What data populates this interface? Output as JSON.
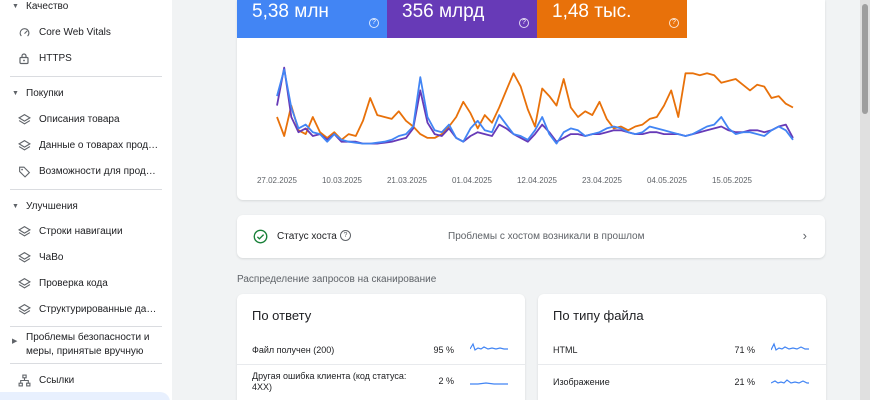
{
  "sidebar": {
    "quality_label": "Качество",
    "quality_items": [
      {
        "label": "Core Web Vitals",
        "icon": "gauge-icon"
      },
      {
        "label": "HTTPS",
        "icon": "lock-icon"
      }
    ],
    "shopping_label": "Покупки",
    "shopping_items": [
      {
        "label": "Описания товара",
        "icon": "layers-icon"
      },
      {
        "label": "Данные о товарах прод…",
        "icon": "layers-icon"
      },
      {
        "label": "Возможности для прод…",
        "icon": "tag-icon"
      }
    ],
    "enhancements_label": "Улучшения",
    "enhancements_items": [
      {
        "label": "Строки навигации",
        "icon": "layers-icon"
      },
      {
        "label": "ЧаВо",
        "icon": "layers-icon"
      },
      {
        "label": "Проверка кода",
        "icon": "layers-icon"
      },
      {
        "label": "Структурированные да…",
        "icon": "layers-icon"
      }
    ],
    "security_label_line1": "Проблемы безопасности и",
    "security_label_line2": "меры, принятые вручную",
    "links_label": "Ссылки",
    "colors": {
      "active_bg": "#e8f0fe"
    }
  },
  "metrics": [
    {
      "value": "5,38 млн",
      "color": "#4285f4"
    },
    {
      "value": "356 млрд",
      "color": "#673ab7"
    },
    {
      "value": "1,48 тыс.",
      "color": "#e8710a"
    }
  ],
  "chart_data": {
    "type": "line",
    "x_labels": [
      "27.02.2025",
      "10.03.2025",
      "21.03.2025",
      "01.04.2025",
      "12.04.2025",
      "23.04.2025",
      "04.05.2025",
      "15.05.2025"
    ],
    "x_range": [
      "2025-02-27",
      "2025-05-27"
    ],
    "grid": false,
    "series": [
      {
        "color": "#4285f4",
        "values": [
          62,
          90,
          50,
          28,
          32,
          24,
          22,
          14,
          22,
          16,
          14,
          13,
          12,
          12,
          13,
          14,
          16,
          20,
          22,
          30,
          82,
          40,
          26,
          24,
          32,
          18,
          14,
          28,
          36,
          26,
          24,
          42,
          32,
          22,
          20,
          16,
          26,
          40,
          22,
          12,
          24,
          28,
          26,
          20,
          22,
          24,
          28,
          30,
          28,
          24,
          22,
          24,
          30,
          28,
          26,
          24,
          22,
          20,
          22,
          26,
          30,
          32,
          40,
          28,
          22,
          24,
          24,
          22,
          20,
          26,
          30,
          26,
          16
        ]
      },
      {
        "color": "#673ab7",
        "values": [
          52,
          92,
          40,
          24,
          28,
          20,
          22,
          16,
          22,
          14,
          14,
          14,
          12,
          12,
          12,
          13,
          14,
          16,
          18,
          28,
          68,
          34,
          22,
          20,
          28,
          18,
          14,
          20,
          24,
          22,
          20,
          32,
          28,
          22,
          18,
          14,
          22,
          32,
          24,
          14,
          18,
          22,
          22,
          20,
          22,
          22,
          24,
          26,
          26,
          24,
          22,
          22,
          24,
          24,
          22,
          22,
          22,
          20,
          22,
          24,
          26,
          28,
          30,
          26,
          24,
          24,
          26,
          26,
          24,
          26,
          30,
          32,
          18
        ]
      },
      {
        "color": "#e8710a",
        "values": [
          40,
          20,
          52,
          26,
          22,
          40,
          24,
          18,
          24,
          16,
          22,
          20,
          36,
          60,
          42,
          40,
          38,
          46,
          36,
          30,
          22,
          18,
          18,
          22,
          30,
          40,
          56,
          44,
          28,
          42,
          34,
          50,
          68,
          86,
          72,
          48,
          30,
          70,
          62,
          52,
          80,
          50,
          40,
          46,
          42,
          56,
          38,
          28,
          30,
          26,
          30,
          32,
          38,
          40,
          52,
          68,
          40,
          86,
          86,
          84,
          86,
          84,
          76,
          78,
          80,
          74,
          68,
          74,
          72,
          60,
          62,
          54,
          50
        ]
      }
    ]
  },
  "host": {
    "title": "Статус хоста",
    "message": "Проблемы с хостом возникали в прошлом"
  },
  "distribution_title": "Распределение запросов на сканирование",
  "by_response": {
    "title": "По ответу",
    "rows": [
      {
        "label": "Файл получен (200)",
        "pct": "95 %"
      },
      {
        "label": "Другая ошибка клиента (код статуса: 4XX)",
        "pct": "2 %"
      }
    ]
  },
  "by_filetype": {
    "title": "По типу файла",
    "rows": [
      {
        "label": "HTML",
        "pct": "71 %"
      },
      {
        "label": "Изображение",
        "pct": "21 %"
      }
    ]
  }
}
